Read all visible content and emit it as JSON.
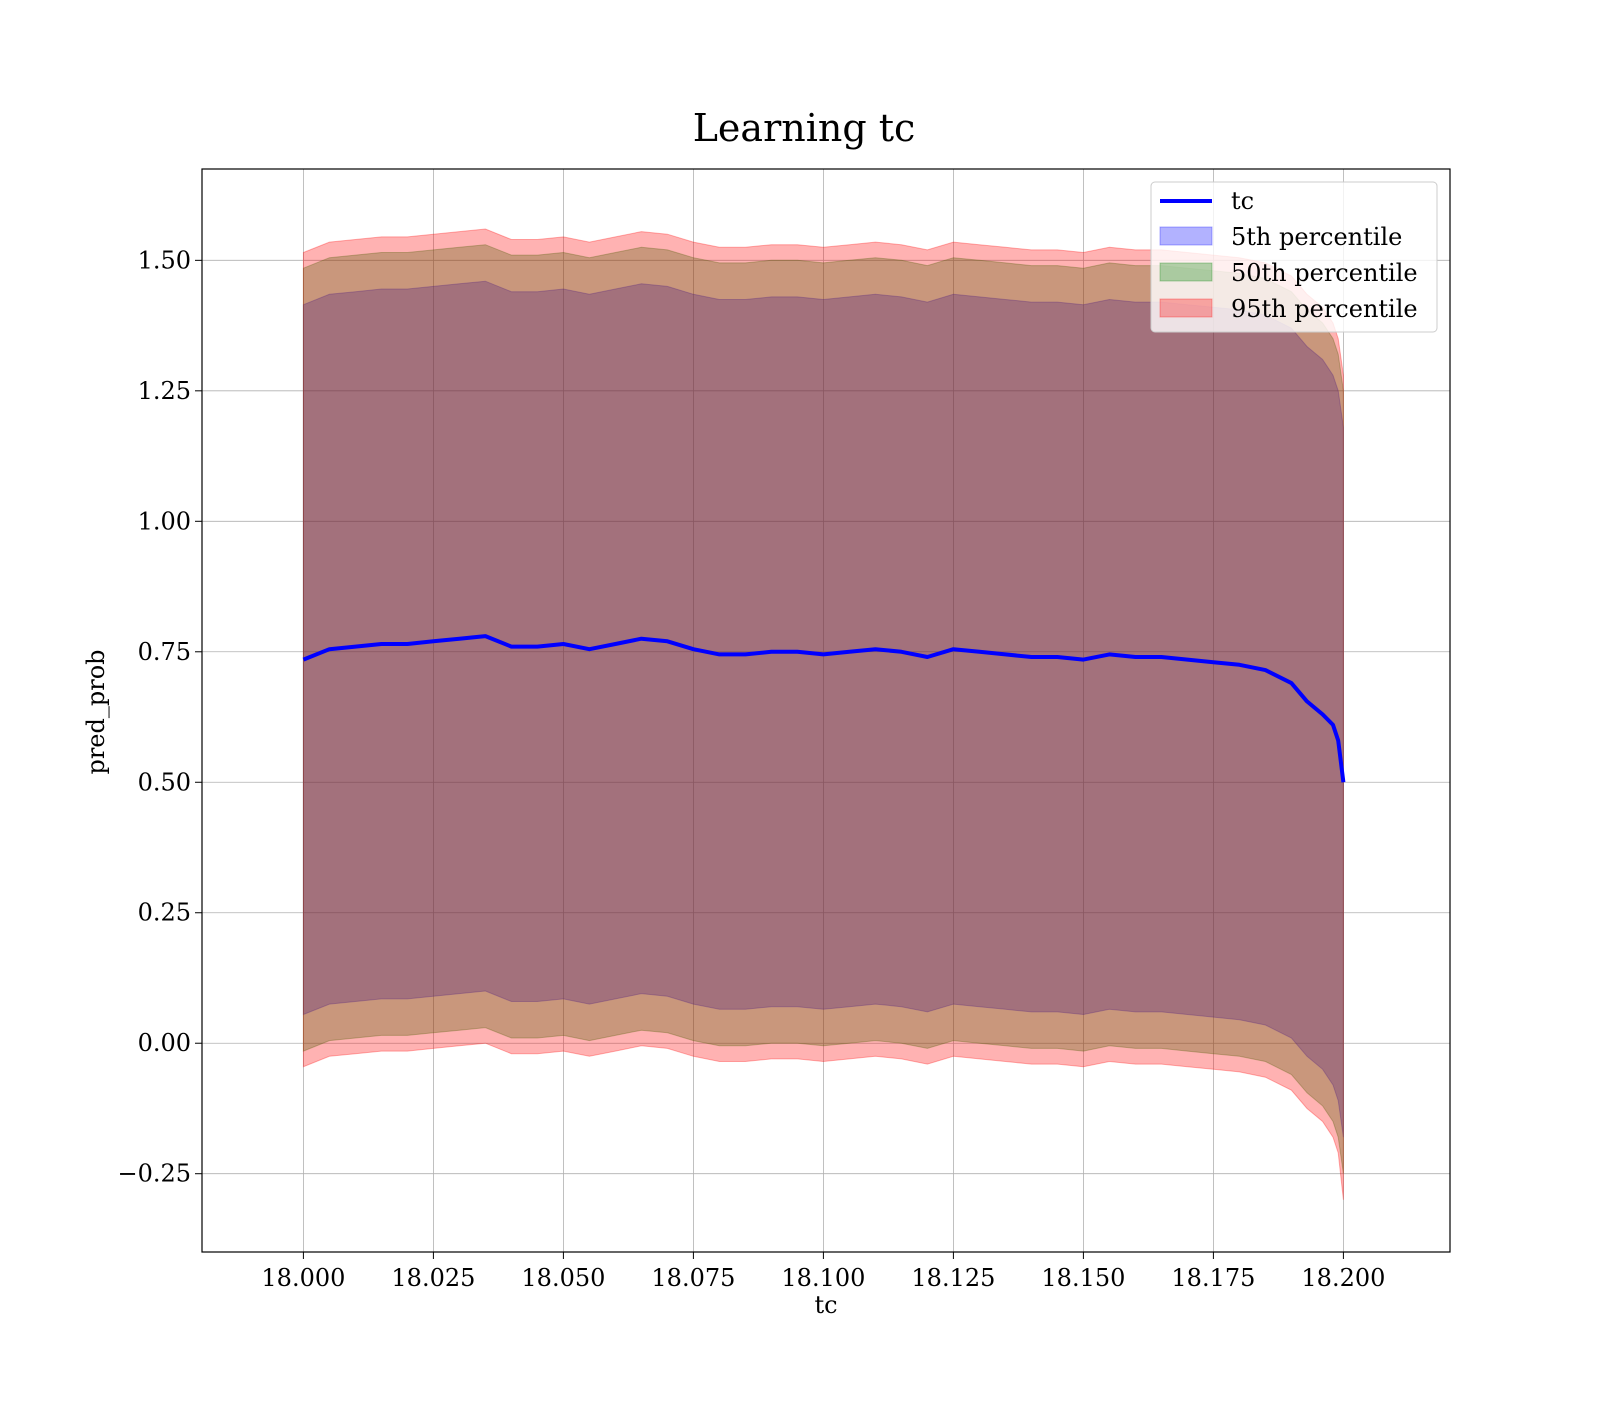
{
  "chart_data": {
    "type": "area",
    "title": "Learning tc",
    "xlabel": "tc",
    "ylabel": "pred_prob",
    "xlim": [
      17.9805,
      18.2205
    ],
    "ylim": [
      -0.4,
      1.675
    ],
    "grid": true,
    "legend_position": "top-right",
    "x_ticks": [
      18.0,
      18.025,
      18.05,
      18.075,
      18.1,
      18.125,
      18.15,
      18.175,
      18.2
    ],
    "x_tick_labels": [
      "18.000",
      "18.025",
      "18.050",
      "18.075",
      "18.100",
      "18.125",
      "18.150",
      "18.175",
      "18.200"
    ],
    "y_ticks": [
      -0.25,
      0.0,
      0.25,
      0.5,
      0.75,
      1.0,
      1.25,
      1.5
    ],
    "y_tick_labels": [
      "−0.25",
      "0.00",
      "0.25",
      "0.50",
      "0.75",
      "1.00",
      "1.25",
      "1.50"
    ],
    "x": [
      18.0,
      18.005,
      18.01,
      18.015,
      18.02,
      18.025,
      18.03,
      18.035,
      18.04,
      18.045,
      18.05,
      18.055,
      18.06,
      18.065,
      18.07,
      18.075,
      18.08,
      18.085,
      18.09,
      18.095,
      18.1,
      18.105,
      18.11,
      18.115,
      18.12,
      18.125,
      18.13,
      18.135,
      18.14,
      18.145,
      18.15,
      18.155,
      18.16,
      18.165,
      18.17,
      18.175,
      18.18,
      18.185,
      18.19,
      18.193,
      18.196,
      18.198,
      18.199,
      18.2
    ],
    "series": [
      {
        "name": "tc",
        "kind": "line",
        "color": "#0000ff",
        "values": [
          0.735,
          0.755,
          0.76,
          0.765,
          0.765,
          0.77,
          0.775,
          0.78,
          0.76,
          0.76,
          0.765,
          0.755,
          0.765,
          0.775,
          0.77,
          0.755,
          0.745,
          0.745,
          0.75,
          0.75,
          0.745,
          0.75,
          0.755,
          0.75,
          0.74,
          0.755,
          0.75,
          0.745,
          0.74,
          0.74,
          0.735,
          0.745,
          0.74,
          0.74,
          0.735,
          0.73,
          0.725,
          0.715,
          0.69,
          0.655,
          0.63,
          0.61,
          0.58,
          0.5
        ]
      },
      {
        "name": "5th percentile",
        "kind": "band",
        "color": "#0000ff",
        "upper": [
          1.415,
          1.435,
          1.44,
          1.445,
          1.445,
          1.45,
          1.455,
          1.46,
          1.44,
          1.44,
          1.445,
          1.435,
          1.445,
          1.455,
          1.45,
          1.435,
          1.425,
          1.425,
          1.43,
          1.43,
          1.425,
          1.43,
          1.435,
          1.43,
          1.42,
          1.435,
          1.43,
          1.425,
          1.42,
          1.42,
          1.415,
          1.425,
          1.42,
          1.42,
          1.415,
          1.41,
          1.405,
          1.395,
          1.37,
          1.335,
          1.31,
          1.28,
          1.25,
          1.18
        ],
        "lower": [
          0.055,
          0.075,
          0.08,
          0.085,
          0.085,
          0.09,
          0.095,
          0.1,
          0.08,
          0.08,
          0.085,
          0.075,
          0.085,
          0.095,
          0.09,
          0.075,
          0.065,
          0.065,
          0.07,
          0.07,
          0.065,
          0.07,
          0.075,
          0.07,
          0.06,
          0.075,
          0.07,
          0.065,
          0.06,
          0.06,
          0.055,
          0.065,
          0.06,
          0.06,
          0.055,
          0.05,
          0.045,
          0.035,
          0.01,
          -0.025,
          -0.05,
          -0.08,
          -0.11,
          -0.18
        ]
      },
      {
        "name": "50th percentile",
        "kind": "band",
        "color": "#008000",
        "upper": [
          1.485,
          1.505,
          1.51,
          1.515,
          1.515,
          1.52,
          1.525,
          1.53,
          1.51,
          1.51,
          1.515,
          1.505,
          1.515,
          1.525,
          1.52,
          1.505,
          1.495,
          1.495,
          1.5,
          1.5,
          1.495,
          1.5,
          1.505,
          1.5,
          1.49,
          1.505,
          1.5,
          1.495,
          1.49,
          1.49,
          1.485,
          1.495,
          1.49,
          1.49,
          1.485,
          1.48,
          1.475,
          1.465,
          1.44,
          1.405,
          1.38,
          1.35,
          1.32,
          1.25
        ],
        "lower": [
          -0.015,
          0.005,
          0.01,
          0.015,
          0.015,
          0.02,
          0.025,
          0.03,
          0.01,
          0.01,
          0.015,
          0.005,
          0.015,
          0.025,
          0.02,
          0.005,
          -0.005,
          -0.005,
          0.0,
          0.0,
          -0.005,
          0.0,
          0.005,
          0.0,
          -0.01,
          0.005,
          0.0,
          -0.005,
          -0.01,
          -0.01,
          -0.015,
          -0.005,
          -0.01,
          -0.01,
          -0.015,
          -0.02,
          -0.025,
          -0.035,
          -0.06,
          -0.095,
          -0.12,
          -0.15,
          -0.18,
          -0.25
        ]
      },
      {
        "name": "95th percentile",
        "kind": "band",
        "color": "#ff0000",
        "upper": [
          1.515,
          1.535,
          1.54,
          1.545,
          1.545,
          1.55,
          1.555,
          1.56,
          1.54,
          1.54,
          1.545,
          1.535,
          1.545,
          1.555,
          1.55,
          1.535,
          1.525,
          1.525,
          1.53,
          1.53,
          1.525,
          1.53,
          1.535,
          1.53,
          1.52,
          1.535,
          1.53,
          1.525,
          1.52,
          1.52,
          1.515,
          1.525,
          1.52,
          1.52,
          1.515,
          1.51,
          1.505,
          1.495,
          1.47,
          1.435,
          1.41,
          1.38,
          1.35,
          1.28
        ],
        "lower": [
          -0.045,
          -0.025,
          -0.02,
          -0.015,
          -0.015,
          -0.01,
          -0.005,
          0.0,
          -0.02,
          -0.02,
          -0.015,
          -0.025,
          -0.015,
          -0.005,
          -0.01,
          -0.025,
          -0.035,
          -0.035,
          -0.03,
          -0.03,
          -0.035,
          -0.03,
          -0.025,
          -0.03,
          -0.04,
          -0.025,
          -0.03,
          -0.035,
          -0.04,
          -0.04,
          -0.045,
          -0.035,
          -0.04,
          -0.04,
          -0.045,
          -0.05,
          -0.055,
          -0.065,
          -0.09,
          -0.125,
          -0.15,
          -0.18,
          -0.21,
          -0.3
        ]
      }
    ]
  }
}
